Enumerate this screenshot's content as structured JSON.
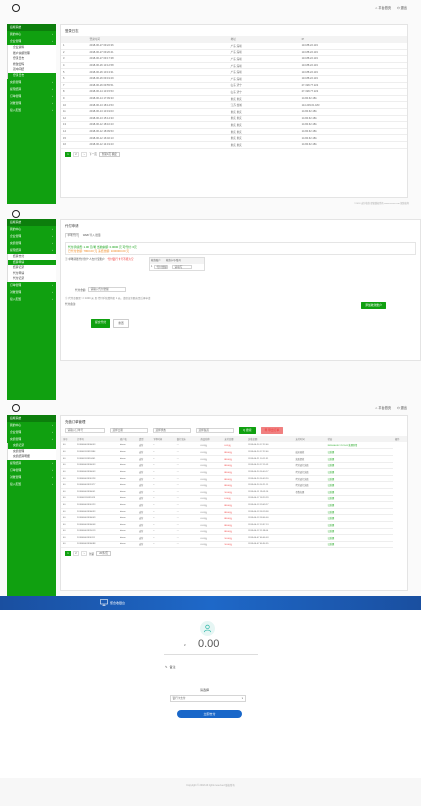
{
  "colors": {
    "accent": "#10a010",
    "accent_dark": "#0c7e0c",
    "pay_header": "#1e5fb4",
    "pay_button": "#1967c9"
  },
  "topnav": {
    "home": "平台首页",
    "logout": "退出"
  },
  "sidebar": {
    "brand": "后端系统",
    "p1": {
      "items": [
        {
          "label": "我的中心",
          "arrow": "›"
        },
        {
          "label": "企业管理",
          "arrow": "‹"
        }
      ],
      "subs": [
        "企业资料",
        "账户余额管理",
        "登录日志",
        "修改密码",
        "双中间结",
        "登录日志"
      ],
      "active_sub": 5,
      "after": [
        {
          "label": "充值管理",
          "arrow": "›"
        },
        {
          "label": "提现结算",
          "arrow": "›"
        },
        {
          "label": "订单管理",
          "arrow": "›"
        },
        {
          "label": "对账管理",
          "arrow": "›"
        },
        {
          "label": "接入配置",
          "arrow": "›"
        }
      ]
    },
    "p2": {
      "items": [
        {
          "label": "我的中心",
          "arrow": "›"
        },
        {
          "label": "企业管理",
          "arrow": "›"
        },
        {
          "label": "充值管理",
          "arrow": "›"
        },
        {
          "label": "提现结算",
          "arrow": "‹"
        }
      ],
      "subs": [
        "结算支付",
        "结算申请",
        "结算记录",
        "代付申请",
        "代付记录"
      ],
      "active_sub": 1,
      "after": [
        {
          "label": "订单管理",
          "arrow": "›"
        },
        {
          "label": "对账管理",
          "arrow": "›"
        },
        {
          "label": "接入配置",
          "arrow": "›"
        }
      ]
    },
    "p3": {
      "items": [
        {
          "label": "我的中心",
          "arrow": "›"
        },
        {
          "label": "企业管理",
          "arrow": "›"
        },
        {
          "label": "充值管理",
          "arrow": "‹"
        }
      ],
      "subs": [
        "充值记录",
        "充值管理",
        "充值结算明细"
      ],
      "active_sub": 0,
      "after": [
        {
          "label": "提现结算",
          "arrow": "›"
        },
        {
          "label": "订单管理",
          "arrow": "›"
        },
        {
          "label": "对账管理",
          "arrow": "›"
        },
        {
          "label": "接入配置",
          "arrow": "›"
        }
      ]
    }
  },
  "login_log": {
    "title": "登录日志",
    "headers": [
      "",
      "登录时间",
      "地址",
      "IP"
    ],
    "rows": [
      [
        "1",
        "2018-06-27 09:22:36",
        "广东 深圳",
        "113.88.22.119"
      ],
      [
        "2",
        "2018-06-27 09:20:41",
        "广东 深圳",
        "113.88.22.119"
      ],
      [
        "3",
        "2018-06-27 09:17:38",
        "广东 深圳",
        "113.88.22.119"
      ],
      [
        "4",
        "2018-06-26 13:12:58",
        "广东 深圳",
        "113.88.22.119"
      ],
      [
        "5",
        "2018-06-26 10:13:31",
        "广东 深圳",
        "113.88.22.119"
      ],
      [
        "6",
        "2018-06-26 09:19:29",
        "广东 深圳",
        "113.88.22.119"
      ],
      [
        "7",
        "2018-06-26 09:55:51",
        "山东 济宁",
        "27.198.77.222"
      ],
      [
        "8",
        "2018-06-14 13:15:53",
        "山东 济宁",
        "27.198.77.222"
      ],
      [
        "9",
        "2018-06-14 17:09:33",
        "重庆 重庆",
        "14.84.62.181"
      ],
      [
        "10",
        "2018-06-13 18:14:53",
        "江苏 盐城",
        "114.239.61.183"
      ],
      [
        "11",
        "2018-06-13 13:19:03",
        "重庆 重庆",
        "14.84.62.181"
      ],
      [
        "12",
        "2018-06-13 15:14:33",
        "重庆 重庆",
        "14.84.62.181"
      ],
      [
        "13",
        "2018-06-12 18:10:23",
        "重庆 重庆",
        "14.84.62.181"
      ],
      [
        "14",
        "2018-06-12 18:09:53",
        "重庆 重庆",
        "14.84.62.181"
      ],
      [
        "15",
        "2018-06-12 16:02:13",
        "重庆 重庆",
        "14.84.62.181"
      ],
      [
        "16",
        "2018-06-12 14:19:23",
        "重庆 重庆",
        "14.84.62.181"
      ]
    ],
    "pager": {
      "pages": [
        "1",
        "2",
        "›"
      ],
      "next": "下一页",
      "jump": "到第1页 确定"
    }
  },
  "footer": "©2018 支付收款 保留版权所有 www.xxxxx.com 保留权利",
  "payout": {
    "title": "代付申请",
    "tabs": [
      "单笔代付",
      "WEB 导入 批量"
    ],
    "notice_l1": "代付手续费: 1.00 元/笔    当前余额: 0.0000 元    可代付: 0元",
    "notice_l2": "已代付金额: 7800.00 元    冻结金额: 1000000.00 元",
    "step1": "① 单笔转账代付到个人支付宝账户",
    "step1_hint": "代付银行卡号不能为空",
    "mini_headers": [
      "收款账户",
      "收款卡号/账号"
    ],
    "mini_row": {
      "num": "1",
      "name": "代付金额",
      "val": "请填写"
    },
    "amount_label": "代付金额:",
    "amount_placeholder": "请输入代付金额",
    "note": "② 代付金额需 >= 1000 元 且 代付手续费将扣 1 元，请保证余额充足后再申请",
    "memo_label": "代付备注:",
    "add_btn": "添加收款账户",
    "submit": "提交代付",
    "reset": "重置"
  },
  "orders": {
    "title": "充值订单管理",
    "filters": {
      "order_no": "请输入订单号",
      "date": "选择日期",
      "status": "选择状态",
      "channel": "选择渠道"
    },
    "search": "Q 搜索",
    "export": "导 导出订单",
    "headers": [
      "序号",
      "订单号",
      "商户名",
      "类型",
      "下单时间",
      "银行流水",
      "商品名称",
      "支付金额",
      "实收金额",
      "支付时间",
      "状态",
      "操作"
    ],
    "rows": [
      [
        "40",
        "201806061830053",
        "demo",
        "支付",
        "--",
        "—",
        "0.01元",
        "0.01元",
        "2018-06-20 17:22:46",
        "",
        "2018-06-20 17:21:01 处理异常"
      ],
      [
        "40",
        "201806191819384",
        "demo",
        "支付",
        "--",
        "—",
        "0.01元",
        "88.00元",
        "2018-06-20 17:22:46",
        "成功退款",
        "已处理"
      ],
      [
        "40",
        "201806191818461",
        "demo",
        "支付",
        "--",
        "—",
        "0.01元",
        "88.00元",
        "2018-06-21 10:11:31",
        "失败提款",
        "已处理"
      ],
      [
        "40",
        "201806061830053",
        "demo",
        "支付",
        "--",
        "—",
        "0.01元",
        "88.00元",
        "2018-06-20 17:11:03",
        "代付进行失败",
        "已处理"
      ],
      [
        "40",
        "201806061830043",
        "demo",
        "支付",
        "--",
        "—",
        "0.01元",
        "88.00元",
        "2018-06-20 16:00:17",
        "代付进行失败",
        "已处理"
      ],
      [
        "40",
        "201806061830128",
        "demo",
        "支付",
        "--",
        "—",
        "0.01元",
        "88.00元",
        "2018-06-20 16:03:20",
        "代付进行失败",
        "已处理"
      ],
      [
        "40",
        "201806061831377",
        "demo",
        "支付",
        "--",
        "—",
        "0.01元",
        "88.00元",
        "2018-06-20 14:21:11",
        "代付进行失败",
        "已处理"
      ],
      [
        "40",
        "201806061830001",
        "demo",
        "支付",
        "--",
        "—",
        "0.01元",
        "10.00元",
        "2018-06-11 19:09:16",
        "也我在理",
        "已处理"
      ],
      [
        "40",
        "201806111831028",
        "demo",
        "支付",
        "--",
        "—",
        "0.01元",
        "6.00元",
        "2018-06-17 18:23:29",
        "",
        "已处理"
      ],
      [
        "40",
        "201806061830123",
        "demo",
        "支付",
        "--",
        "—",
        "0.01元",
        "88.00元",
        "2018-06-13 19:09:27",
        "",
        "已处理"
      ],
      [
        "40",
        "201806061830033",
        "demo",
        "支付",
        "--",
        "—",
        "0.01元",
        "88.00元",
        "2018-06-13 18:19:58",
        "",
        "已处理"
      ],
      [
        "40",
        "201806061830009",
        "demo",
        "支付",
        "--",
        "—",
        "0.01元",
        "88.00元",
        "2018-06-13 18:46:00",
        "",
        "已处理"
      ],
      [
        "40",
        "201806061830048",
        "demo",
        "支付",
        "--",
        "—",
        "0.01元",
        "88.00元",
        "2018-06-12 13:37:13",
        "",
        "已处理"
      ],
      [
        "40",
        "201806061831019",
        "demo",
        "支付",
        "--",
        "—",
        "0.01元",
        "88.00元",
        "2018-06-12 11:38:04",
        "",
        "已处理"
      ],
      [
        "40",
        "201806061830111",
        "demo",
        "支付",
        "--",
        "—",
        "0.01元",
        "10.00元",
        "2018-06-07 06:46:03",
        "",
        "已处理"
      ],
      [
        "40",
        "201806061830088",
        "demo",
        "支付",
        "--",
        "—",
        "0.01元",
        "10.00元",
        "2018-06-07 06:34:55",
        "",
        "已处理"
      ]
    ],
    "pager": {
      "pages": [
        "1",
        "2",
        "›"
      ],
      "goto": "到第",
      "size": "20条/页"
    }
  },
  "pay": {
    "header_title": "聚合收银台",
    "currency": "¥",
    "amount": "0.00",
    "remark": "备注",
    "method_label": "请选择",
    "method_value": "银行卡支付",
    "submit": "立即支付",
    "copyright": "Copyright © 2018 All rights reserved 版权所有"
  }
}
